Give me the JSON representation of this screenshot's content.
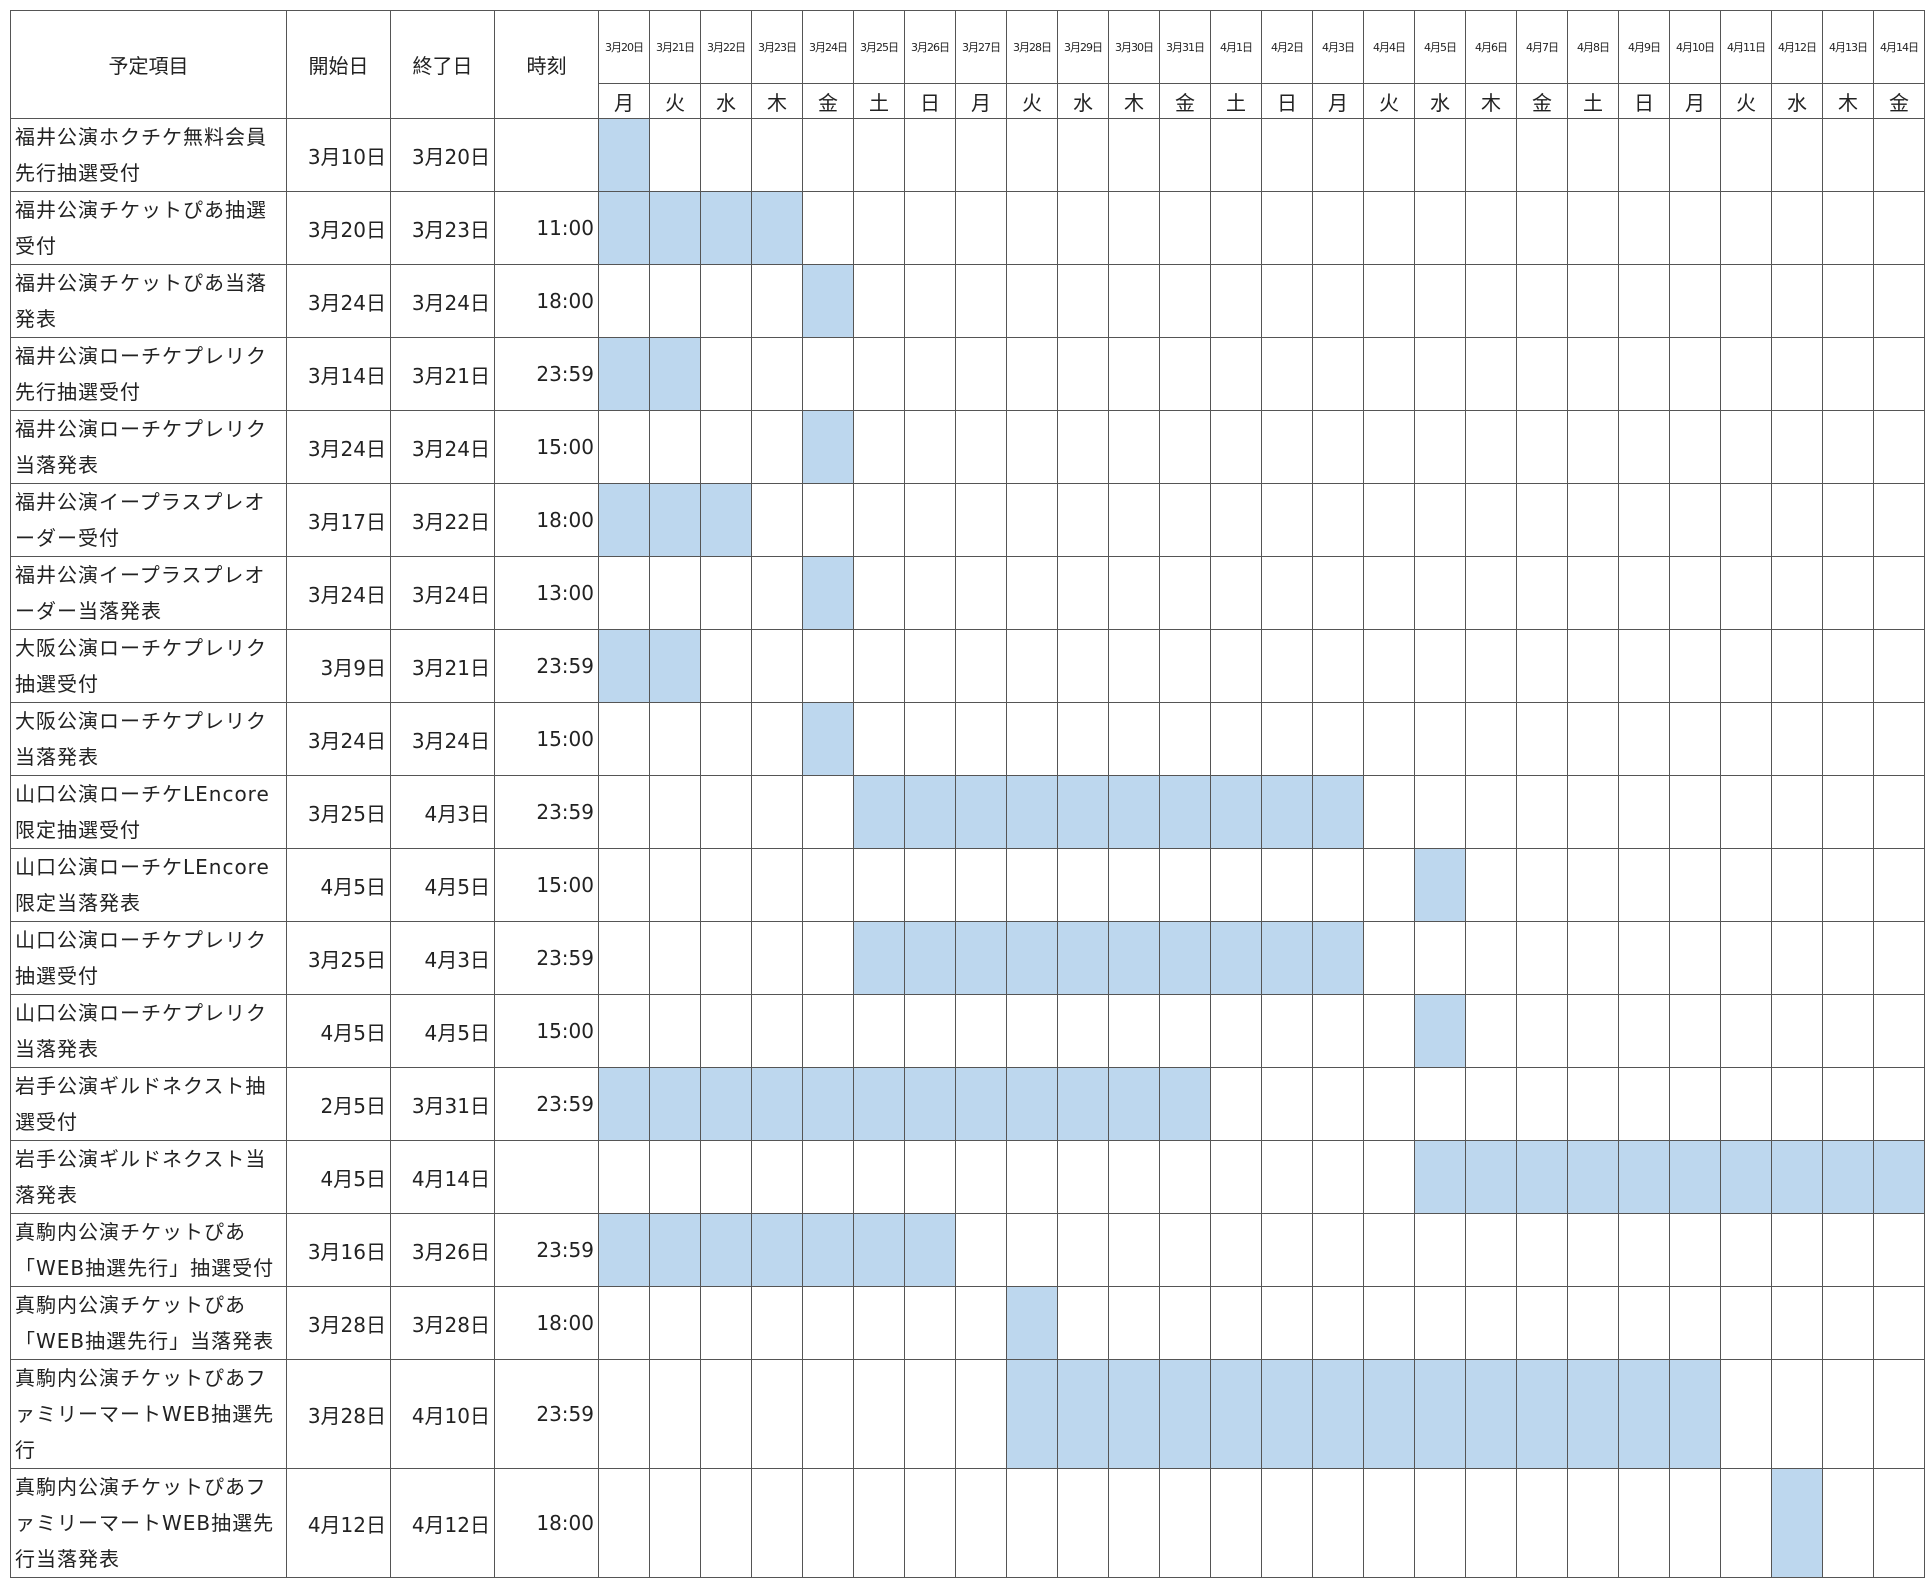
{
  "table": {
    "header": {
      "item": "予定項目",
      "start": "開始日",
      "end": "終了日",
      "time": "時刻"
    },
    "dates": [
      "3月20日",
      "3月21日",
      "3月22日",
      "3月23日",
      "3月24日",
      "3月25日",
      "3月26日",
      "3月27日",
      "3月28日",
      "3月29日",
      "3月30日",
      "3月31日",
      "4月1日",
      "4月2日",
      "4月3日",
      "4月4日",
      "4月5日",
      "4月6日",
      "4月7日",
      "4月8日",
      "4月9日",
      "4月10日",
      "4月11日",
      "4月12日",
      "4月13日",
      "4月14日"
    ],
    "weekdays": [
      "月",
      "火",
      "水",
      "木",
      "金",
      "土",
      "日",
      "月",
      "火",
      "水",
      "木",
      "金",
      "土",
      "日",
      "月",
      "火",
      "水",
      "木",
      "金",
      "土",
      "日",
      "月",
      "火",
      "水",
      "木",
      "金"
    ],
    "rows": [
      {
        "item": "福井公演ホクチケ無料会員先行抽選受付",
        "start": "3月10日",
        "end": "3月20日"
      },
      {
        "item": "福井公演チケットぴあ抽選受付",
        "start": "3月20日",
        "end": "3月23日",
        "time": "11:00"
      },
      {
        "item": "福井公演チケットぴあ当落発表",
        "start": "3月24日",
        "end": "3月24日",
        "time": "18:00"
      },
      {
        "item": "福井公演ローチケプレリク先行抽選受付",
        "start": "3月14日",
        "end": "3月21日",
        "time": "23:59"
      },
      {
        "item": "福井公演ローチケプレリク当落発表",
        "start": "3月24日",
        "end": "3月24日",
        "time": "15:00"
      },
      {
        "item": "福井公演イープラスプレオーダー受付",
        "start": "3月17日",
        "end": "3月22日",
        "time": "18:00"
      },
      {
        "item": "福井公演イープラスプレオーダー当落発表",
        "start": "3月24日",
        "end": "3月24日",
        "time": "13:00"
      },
      {
        "item": "大阪公演ローチケプレリク抽選受付",
        "start": "3月9日",
        "end": "3月21日",
        "time": "23:59"
      },
      {
        "item": "大阪公演ローチケプレリク当落発表",
        "start": "3月24日",
        "end": "3月24日",
        "time": "15:00"
      },
      {
        "item": "山口公演ローチケLEncore限定抽選受付",
        "start": "3月25日",
        "end": "4月3日",
        "time": "23:59"
      },
      {
        "item": "山口公演ローチケLEncore限定当落発表",
        "start": "4月5日",
        "end": "4月5日",
        "time": "15:00"
      },
      {
        "item": "山口公演ローチケプレリク抽選受付",
        "start": "3月25日",
        "end": "4月3日",
        "time": "23:59"
      },
      {
        "item": "山口公演ローチケプレリク当落発表",
        "start": "4月5日",
        "end": "4月5日",
        "time": "15:00"
      },
      {
        "item": "岩手公演ギルドネクスト抽選受付",
        "start": "2月5日",
        "end": "3月31日",
        "time": "23:59"
      },
      {
        "item": "岩手公演ギルドネクスト当落発表",
        "start": "4月5日",
        "end": "4月14日"
      },
      {
        "item": "真駒内公演チケットぴあ「WEB抽選先行」抽選受付",
        "start": "3月16日",
        "end": "3月26日",
        "time": "23:59"
      },
      {
        "item": "真駒内公演チケットぴあ「WEB抽選先行」当落発表",
        "start": "3月28日",
        "end": "3月28日",
        "time": "18:00"
      },
      {
        "item": "真駒内公演チケットぴあファミリーマートWEB抽選先行",
        "start": "3月28日",
        "end": "4月10日",
        "time": "23:59"
      },
      {
        "item": "真駒内公演チケットぴあファミリーマートWEB抽選先行当落発表",
        "start": "4月12日",
        "end": "4月12日",
        "time": "18:00"
      }
    ]
  }
}
